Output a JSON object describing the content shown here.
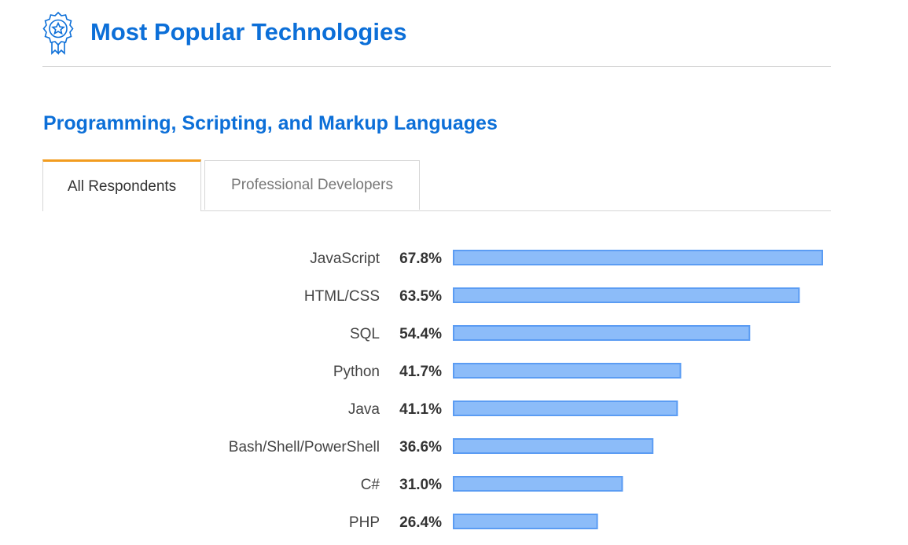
{
  "header": {
    "title": "Most Popular Technologies",
    "icon": "award-ribbon-icon",
    "accent_color": "#0c6fd8"
  },
  "section": {
    "title": "Programming, Scripting, and Markup Languages"
  },
  "tabs": [
    {
      "label": "All Respondents",
      "active": true
    },
    {
      "label": "Professional Developers",
      "active": false
    }
  ],
  "tab_active_color": "#f29c1f",
  "chart_data": {
    "type": "bar",
    "orientation": "horizontal",
    "categories": [
      "JavaScript",
      "HTML/CSS",
      "SQL",
      "Python",
      "Java",
      "Bash/Shell/PowerShell",
      "C#",
      "PHP"
    ],
    "values": [
      67.8,
      63.5,
      54.4,
      41.7,
      41.1,
      36.6,
      31.0,
      26.4
    ],
    "value_labels": [
      "67.8%",
      "63.5%",
      "54.4%",
      "41.7%",
      "41.1%",
      "36.6%",
      "31.0%",
      "26.4%"
    ],
    "unit": "%",
    "bar_fill": "#8cbcf9",
    "bar_stroke": "#5b9cf3",
    "grid": false,
    "legend": "none"
  }
}
